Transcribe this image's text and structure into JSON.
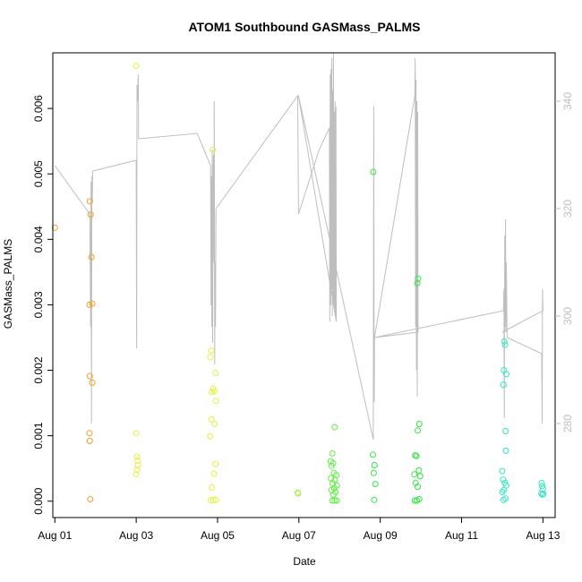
{
  "chart_data": {
    "type": "scatter",
    "title": "ATOM1 Southbound GASMass_PALMS",
    "xlabel": "Date",
    "ylabel": "GASMass_PALMS",
    "xlim": [
      -0.05,
      12.3
    ],
    "ylim": [
      -0.00025,
      0.00685
    ],
    "y2lim": [
      262.5,
      349.0
    ],
    "x_ticks": [
      {
        "v": 0,
        "label": "Aug 01"
      },
      {
        "v": 2,
        "label": "Aug 03"
      },
      {
        "v": 4,
        "label": "Aug 05"
      },
      {
        "v": 6,
        "label": "Aug 07"
      },
      {
        "v": 8,
        "label": "Aug 09"
      },
      {
        "v": 10,
        "label": "Aug 11"
      },
      {
        "v": 12,
        "label": "Aug 13"
      }
    ],
    "y_ticks": [
      {
        "v": 0.0,
        "label": "0.000"
      },
      {
        "v": 0.001,
        "label": "0.001"
      },
      {
        "v": 0.002,
        "label": "0.002"
      },
      {
        "v": 0.003,
        "label": "0.003"
      },
      {
        "v": 0.004,
        "label": "0.004"
      },
      {
        "v": 0.005,
        "label": "0.005"
      },
      {
        "v": 0.006,
        "label": "0.006"
      }
    ],
    "y2_ticks": [
      {
        "v": 280,
        "label": "280"
      },
      {
        "v": 300,
        "label": "300"
      },
      {
        "v": 320,
        "label": "320"
      },
      {
        "v": 340,
        "label": "340"
      }
    ],
    "series": [
      {
        "name": "GASMass_PALMS",
        "kind": "points",
        "points": [
          [
            0.0,
            0.00418,
            "#f4a020"
          ],
          [
            0.86,
            0.00458,
            "#f4a020"
          ],
          [
            0.88,
            0.00438,
            "#f4a020"
          ],
          [
            0.9,
            0.00373,
            "#f4a020"
          ],
          [
            0.85,
            0.003,
            "#f4a020"
          ],
          [
            0.92,
            0.00302,
            "#f4a020"
          ],
          [
            0.86,
            0.00191,
            "#f4a020"
          ],
          [
            0.92,
            0.00181,
            "#f4a020"
          ],
          [
            0.85,
            0.00104,
            "#f4a020"
          ],
          [
            0.86,
            0.00092,
            "#f4a020"
          ],
          [
            0.87,
            3e-05,
            "#f4a020"
          ],
          [
            2.0,
            0.00665,
            "#e6f040"
          ],
          [
            2.0,
            0.00104,
            "#e6f040"
          ],
          [
            2.02,
            0.00068,
            "#e6f040"
          ],
          [
            2.03,
            0.00062,
            "#e6f040"
          ],
          [
            2.04,
            0.00055,
            "#e6f040"
          ],
          [
            2.02,
            0.00048,
            "#e6f040"
          ],
          [
            2.0,
            0.00041,
            "#e6f040"
          ],
          [
            3.88,
            0.00537,
            "#e6f040"
          ],
          [
            3.85,
            0.0023,
            "#e6f040"
          ],
          [
            3.82,
            0.0022,
            "#e6f040"
          ],
          [
            3.95,
            0.00196,
            "#e6f040"
          ],
          [
            3.89,
            0.00172,
            "#e6f040"
          ],
          [
            3.86,
            0.00167,
            "#e6f040"
          ],
          [
            3.92,
            0.00168,
            "#e6f040"
          ],
          [
            3.96,
            0.00153,
            "#e6f040"
          ],
          [
            3.85,
            0.00125,
            "#e6f040"
          ],
          [
            3.93,
            0.00118,
            "#e6f040"
          ],
          [
            3.82,
            0.00099,
            "#e6f040"
          ],
          [
            3.95,
            0.00057,
            "#e6f040"
          ],
          [
            3.91,
            0.00042,
            "#e6f040"
          ],
          [
            3.86,
            0.00021,
            "#e6f040"
          ],
          [
            3.84,
            1e-05,
            "#e6f040"
          ],
          [
            3.9,
            2e-05,
            "#e6f040"
          ],
          [
            3.96,
            2e-05,
            "#e6f040"
          ],
          [
            5.97,
            0.00013,
            "#a8f040"
          ],
          [
            5.98,
            0.00012,
            "#a8f040"
          ],
          [
            6.88,
            0.00113,
            "#60f040"
          ],
          [
            6.78,
            0.00061,
            "#60f040"
          ],
          [
            6.82,
            0.00073,
            "#60f040"
          ],
          [
            6.84,
            0.00058,
            "#60f040"
          ],
          [
            6.8,
            0.00054,
            "#60f040"
          ],
          [
            6.86,
            0.00043,
            "#60f040"
          ],
          [
            6.92,
            0.0004,
            "#60f040"
          ],
          [
            6.79,
            0.00035,
            "#60f040"
          ],
          [
            6.88,
            0.00032,
            "#60f040"
          ],
          [
            6.83,
            0.00027,
            "#60f040"
          ],
          [
            6.93,
            0.00024,
            "#60f040"
          ],
          [
            6.87,
            0.0002,
            "#60f040"
          ],
          [
            6.8,
            0.00017,
            "#60f040"
          ],
          [
            6.9,
            0.00014,
            "#60f040"
          ],
          [
            6.85,
            0.0001,
            "#60f040"
          ],
          [
            6.82,
            1e-05,
            "#60f040"
          ],
          [
            6.88,
            1e-05,
            "#60f040"
          ],
          [
            6.93,
            1e-05,
            "#60f040"
          ],
          [
            7.83,
            0.00503,
            "#30e840"
          ],
          [
            7.82,
            0.00071,
            "#30e840"
          ],
          [
            7.86,
            0.00055,
            "#30e840"
          ],
          [
            7.84,
            0.00043,
            "#30e840"
          ],
          [
            7.88,
            0.00026,
            "#30e840"
          ],
          [
            7.85,
            2e-05,
            "#30e840"
          ],
          [
            8.93,
            0.0034,
            "#30e840"
          ],
          [
            8.91,
            0.00333,
            "#30e840"
          ],
          [
            8.96,
            0.00118,
            "#30e840"
          ],
          [
            8.92,
            0.00108,
            "#30e840"
          ],
          [
            8.86,
            0.0007,
            "#30e840"
          ],
          [
            8.89,
            0.00069,
            "#30e840"
          ],
          [
            8.95,
            0.00047,
            "#30e840"
          ],
          [
            8.84,
            0.00041,
            "#30e840"
          ],
          [
            8.98,
            0.00038,
            "#30e840"
          ],
          [
            8.87,
            0.00028,
            "#30e840"
          ],
          [
            8.92,
            0.00022,
            "#30e840"
          ],
          [
            8.85,
            1e-05,
            "#30e840"
          ],
          [
            8.9,
            1e-05,
            "#30e840"
          ],
          [
            8.96,
            3e-05,
            "#30e840"
          ],
          [
            11.05,
            0.00244,
            "#30e8c0"
          ],
          [
            11.07,
            0.00239,
            "#30e8c0"
          ],
          [
            11.04,
            0.002,
            "#30e8c0"
          ],
          [
            11.1,
            0.00194,
            "#30e8c0"
          ],
          [
            11.03,
            0.00178,
            "#30e8c0"
          ],
          [
            11.08,
            0.00107,
            "#30e8c0"
          ],
          [
            11.09,
            0.00077,
            "#30e8c0"
          ],
          [
            11.0,
            0.00046,
            "#30e8c0"
          ],
          [
            11.02,
            0.00033,
            "#30e8c0"
          ],
          [
            11.06,
            0.00028,
            "#30e8c0"
          ],
          [
            11.1,
            0.00024,
            "#30e8c0"
          ],
          [
            11.04,
            0.00017,
            "#30e8c0"
          ],
          [
            11.0,
            0.00014,
            "#30e8c0"
          ],
          [
            11.08,
            4e-05,
            "#30e8c0"
          ],
          [
            11.03,
            2e-05,
            "#30e8c0"
          ],
          [
            11.97,
            0.00028,
            "#30e8c0"
          ],
          [
            11.98,
            0.00023,
            "#30e8c0"
          ],
          [
            12.0,
            0.00019,
            "#30e8c0"
          ],
          [
            11.96,
            0.00012,
            "#30e8c0"
          ],
          [
            11.99,
            0.0001,
            "#30e8c0"
          ],
          [
            12.01,
            0.00011,
            "#30e8c0"
          ]
        ]
      },
      {
        "name": "secondary (right axis)",
        "kind": "line",
        "color": "#bebebe",
        "points": [
          [
            0.0,
            328
          ],
          [
            0.86,
            319
          ],
          [
            0.88,
            298
          ],
          [
            0.89,
            325
          ],
          [
            0.9,
            280
          ],
          [
            0.91,
            326
          ],
          [
            0.92,
            321
          ],
          [
            0.93,
            327
          ],
          [
            2.0,
            329
          ],
          [
            2.01,
            294
          ],
          [
            2.02,
            343
          ],
          [
            2.03,
            340
          ],
          [
            2.05,
            345
          ],
          [
            2.06,
            333
          ],
          [
            3.5,
            334
          ],
          [
            3.83,
            328
          ],
          [
            3.84,
            302
          ],
          [
            3.85,
            326
          ],
          [
            3.86,
            298
          ],
          [
            3.87,
            331
          ],
          [
            3.88,
            295
          ],
          [
            3.89,
            326
          ],
          [
            3.9,
            330
          ],
          [
            3.91,
            310
          ],
          [
            3.92,
            340
          ],
          [
            3.93,
            291
          ],
          [
            3.94,
            310
          ],
          [
            3.95,
            298
          ],
          [
            3.96,
            320
          ],
          [
            5.97,
            341
          ],
          [
            5.99,
            319
          ],
          [
            6.5,
            331
          ],
          [
            6.75,
            335
          ],
          [
            6.76,
            299
          ],
          [
            6.77,
            345
          ],
          [
            6.78,
            302
          ],
          [
            6.79,
            346
          ],
          [
            6.8,
            305
          ],
          [
            6.81,
            348
          ],
          [
            6.82,
            300
          ],
          [
            6.83,
            342
          ],
          [
            6.84,
            303
          ],
          [
            6.85,
            349
          ],
          [
            6.86,
            302
          ],
          [
            6.87,
            338
          ],
          [
            6.88,
            301
          ],
          [
            6.89,
            340
          ],
          [
            6.9,
            300
          ],
          [
            6.91,
            339
          ],
          [
            6.92,
            299
          ],
          [
            5.99,
            341
          ],
          [
            7.83,
            277
          ],
          [
            7.84,
            339
          ],
          [
            7.85,
            284
          ],
          [
            7.86,
            296
          ],
          [
            8.85,
            341
          ],
          [
            8.86,
            348
          ],
          [
            8.87,
            298
          ],
          [
            8.88,
            344
          ],
          [
            8.89,
            290
          ],
          [
            8.9,
            340
          ],
          [
            8.91,
            285
          ],
          [
            8.92,
            338
          ],
          [
            8.93,
            297
          ],
          [
            7.86,
            296
          ],
          [
            11.03,
            301
          ],
          [
            11.04,
            305
          ],
          [
            11.05,
            281
          ],
          [
            11.06,
            315
          ],
          [
            11.07,
            298
          ],
          [
            11.08,
            318
          ],
          [
            11.09,
            297
          ],
          [
            11.1,
            310
          ],
          [
            11.12,
            296
          ],
          [
            11.97,
            293
          ],
          [
            11.98,
            280
          ],
          [
            11.99,
            305
          ],
          [
            12.0,
            301
          ],
          [
            11.0,
            297
          ]
        ]
      }
    ]
  }
}
